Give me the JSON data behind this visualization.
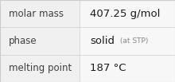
{
  "rows": [
    {
      "label": "molar mass",
      "value": "407.25 g/mol",
      "is_phase": false
    },
    {
      "label": "phase",
      "value": "solid",
      "suffix": " (at STP)",
      "is_phase": true
    },
    {
      "label": "melting point",
      "value": "187 °C",
      "is_phase": false
    }
  ],
  "bg_color": "#f0f0f0",
  "cell_bg": "#f7f7f7",
  "border_color": "#cccccc",
  "label_color": "#404040",
  "value_color": "#1a1a1a",
  "suffix_color": "#888888",
  "font_size_label": 8.5,
  "font_size_value": 9.5,
  "font_size_suffix": 6.5,
  "col_split": 0.455
}
